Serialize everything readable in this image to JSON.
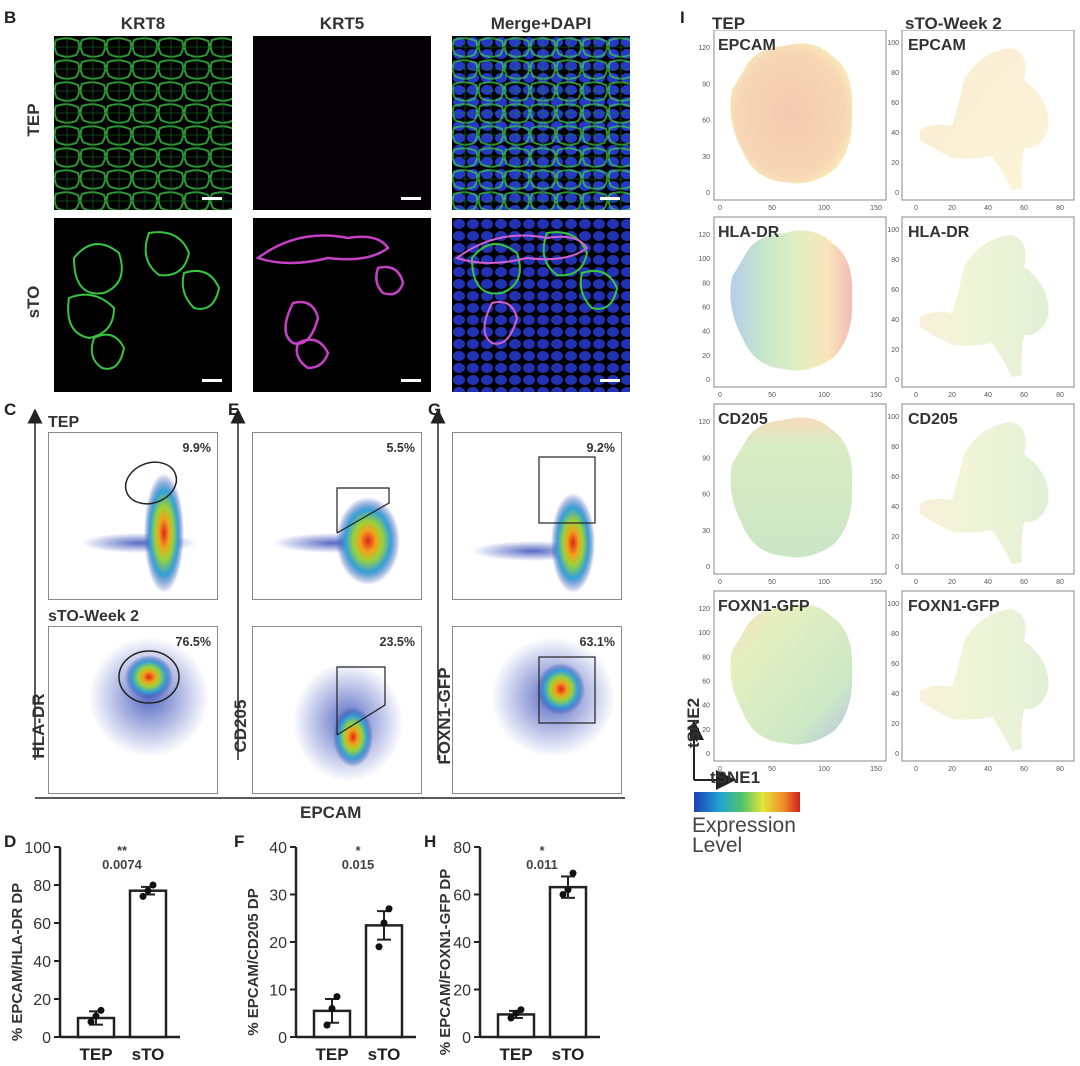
{
  "labels": {
    "B": "B",
    "C": "C",
    "D": "D",
    "E": "E",
    "F": "F",
    "G": "G",
    "H": "H",
    "I": "I"
  },
  "panelB": {
    "columns": [
      "KRT8",
      "KRT5",
      "Merge+DAPI"
    ],
    "rows": [
      "TEP",
      "sTO"
    ]
  },
  "flow": {
    "rows": [
      "TEP",
      "sTO-Week 2"
    ],
    "C": {
      "pcts": [
        "9.9%",
        "76.5%"
      ],
      "ylabel": "HLA-DR"
    },
    "E": {
      "pcts": [
        "5.5%",
        "23.5%"
      ],
      "ylabel": "CD205"
    },
    "G": {
      "pcts": [
        "9.2%",
        "63.1%"
      ],
      "ylabel": "FOXN1-GFP"
    },
    "xlabel": "EPCAM"
  },
  "tsne": {
    "col_titles": [
      "TEP",
      "sTO-Week 2"
    ],
    "markers": [
      "EPCAM",
      "HLA-DR",
      "CD205",
      "FOXN1-GFP"
    ],
    "axis1": "tSNE1",
    "axis2": "tSNE2",
    "legend": "Expression Level",
    "tep_xticks": [
      "0",
      "50",
      "100",
      "150"
    ],
    "tep_yticks": [
      "0",
      "30",
      "60",
      "90",
      "120"
    ],
    "tep_yticks_alt": [
      "0",
      "20",
      "40",
      "60",
      "80",
      "100",
      "120"
    ],
    "sto_xticks": [
      "0",
      "20",
      "40",
      "60",
      "80"
    ],
    "sto_yticks": [
      "0",
      "20",
      "40",
      "60",
      "80",
      "100"
    ]
  },
  "chart_data": [
    {
      "type": "bar",
      "panel": "D",
      "categories": [
        "TEP",
        "sTO"
      ],
      "values": [
        10,
        77
      ],
      "points": [
        [
          8,
          11,
          14
        ],
        [
          74,
          77,
          80
        ]
      ],
      "errors": [
        3.5,
        2.0
      ],
      "ylabel": "% EPCAM/HLA-DR DP",
      "ylim": [
        0,
        100
      ],
      "yticks": [
        "0",
        "20",
        "40",
        "60",
        "80",
        "100"
      ],
      "sig": "**",
      "pvalue": "0.0074"
    },
    {
      "type": "bar",
      "panel": "F",
      "categories": [
        "TEP",
        "sTO"
      ],
      "values": [
        5.5,
        23.5
      ],
      "points": [
        [
          2.5,
          6,
          8.5
        ],
        [
          19,
          24,
          27
        ]
      ],
      "errors": [
        2.5,
        3.0
      ],
      "ylabel": "% EPCAM/CD205 DP",
      "ylim": [
        0,
        40
      ],
      "yticks": [
        "0",
        "10",
        "20",
        "30",
        "40"
      ],
      "sig": "*",
      "pvalue": "0.015"
    },
    {
      "type": "bar",
      "panel": "H",
      "categories": [
        "TEP",
        "sTO"
      ],
      "values": [
        9.5,
        63.1
      ],
      "points": [
        [
          8,
          10,
          11.5
        ],
        [
          60,
          62,
          69
        ]
      ],
      "errors": [
        1.5,
        4.5
      ],
      "ylabel": "% EPCAM/FOXN1-GFP DP",
      "ylim": [
        0,
        80
      ],
      "yticks": [
        "0",
        "20",
        "40",
        "60",
        "80"
      ],
      "sig": "*",
      "pvalue": "0.011"
    }
  ]
}
